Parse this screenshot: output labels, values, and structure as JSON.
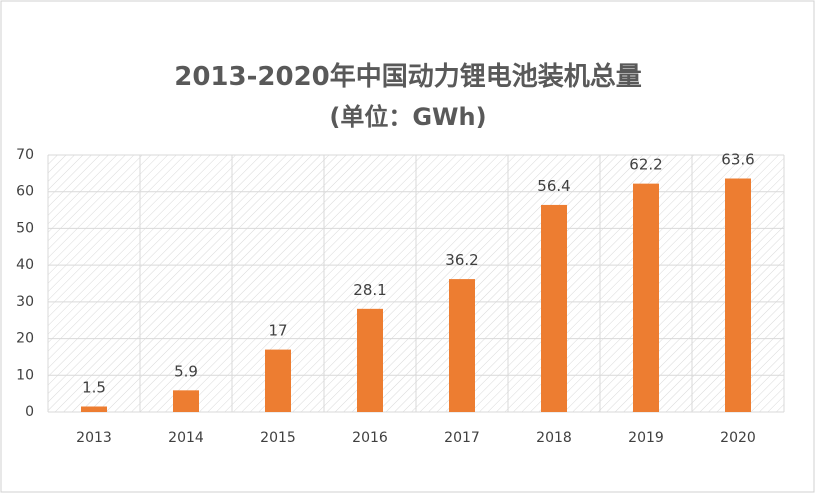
{
  "chart_data": {
    "type": "bar",
    "title": "2013-2020年中国动力锂电池装机总量",
    "subtitle": "(单位：GWh)",
    "categories": [
      "2013",
      "2014",
      "2015",
      "2016",
      "2017",
      "2018",
      "2019",
      "2020"
    ],
    "values": [
      1.5,
      5.9,
      17,
      28.1,
      36.2,
      56.4,
      62.2,
      63.6
    ],
    "color": "#ed7d31",
    "ylim": [
      0,
      70
    ],
    "yticks": [
      0,
      10,
      20,
      30,
      40,
      50,
      60,
      70
    ],
    "grid": true
  }
}
